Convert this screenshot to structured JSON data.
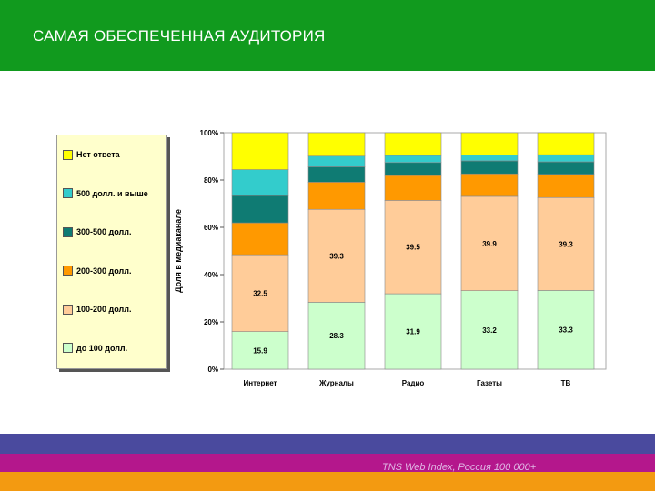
{
  "header": {
    "title": "САМАЯ ОБЕСПЕЧЕННАЯ АУДИТОРИЯ"
  },
  "footer": {
    "source": "TNS Web Index, Россия 100 000+"
  },
  "colors": {
    "header_bg": "#119a1e",
    "footer_blue": "#4a4a9e",
    "footer_magenta": "#b4178c",
    "footer_orange": "#f39a11"
  },
  "legend": {
    "items": [
      {
        "label": "Нет ответа",
        "color": "#ffff00"
      },
      {
        "label": "500 долл. и выше",
        "color": "#33cccc"
      },
      {
        "label": "300-500 долл.",
        "color": "#0f7b73"
      },
      {
        "label": "200-300 долл.",
        "color": "#ff9900"
      },
      {
        "label": "100-200 долл.",
        "color": "#ffcc99"
      },
      {
        "label": "до 100 долл.",
        "color": "#ccffcc"
      }
    ]
  },
  "chart_data": {
    "type": "bar",
    "stacked": true,
    "percent": true,
    "categories": [
      "Интернет",
      "Журналы",
      "Радио",
      "Газеты",
      "ТВ"
    ],
    "ylabel": "Доля в медиаканале",
    "ylim": [
      0,
      100
    ],
    "yticks": [
      "0%",
      "20%",
      "40%",
      "60%",
      "80%",
      "100%"
    ],
    "grid": false,
    "series": [
      {
        "name": "до 100 долл.",
        "color": "#ccffcc",
        "values": [
          15.9,
          28.3,
          31.9,
          33.2,
          33.3
        ],
        "labels": [
          "15.9",
          "28.3",
          "31.9",
          "33.2",
          "33.3"
        ]
      },
      {
        "name": "100-200 долл.",
        "color": "#ffcc99",
        "values": [
          32.5,
          39.3,
          39.5,
          39.9,
          39.3
        ],
        "labels": [
          "32.5",
          "39.3",
          "39.5",
          "39.9",
          "39.3"
        ]
      },
      {
        "name": "200-300 долл.",
        "color": "#ff9900",
        "values": [
          13.5,
          11.5,
          10.5,
          9.5,
          9.8
        ],
        "labels": []
      },
      {
        "name": "300-500 долл.",
        "color": "#0f7b73",
        "values": [
          11.5,
          6.5,
          5.5,
          5.5,
          5.3
        ],
        "labels": []
      },
      {
        "name": "500 долл. и выше",
        "color": "#33cccc",
        "values": [
          11.0,
          4.5,
          3.0,
          2.5,
          3.0
        ],
        "labels": []
      },
      {
        "name": "Нет ответа",
        "color": "#ffff00",
        "values": [
          15.6,
          9.9,
          9.6,
          9.4,
          9.3
        ],
        "labels": []
      }
    ]
  }
}
